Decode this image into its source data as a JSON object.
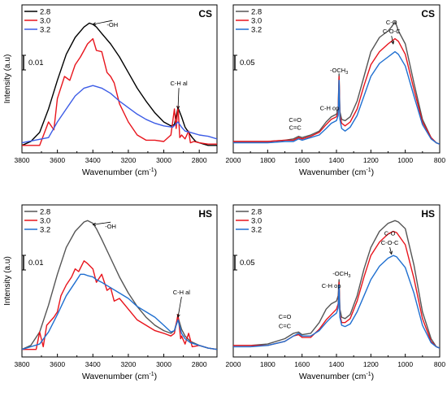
{
  "chart_data": [
    {
      "type": "line",
      "panel_label": "CS",
      "xlabel": "Wavenumber (cm",
      "xlabel_sup": "-1",
      "xlabel_close": ")",
      "ylabel": "Intensity (a.u)",
      "xlim": [
        3800,
        2700
      ],
      "ylim": [
        0,
        1
      ],
      "x_ticks": [
        3800,
        3600,
        3400,
        3200,
        3000,
        2800
      ],
      "scale_bar_label": "0.01",
      "legend": [
        "2.8",
        "3.0",
        "3.2"
      ],
      "colors": [
        "#000000",
        "#e8141c",
        "#3c5ce6"
      ],
      "annotations": [
        {
          "text": "-OH",
          "x": 3290,
          "y": 0.93,
          "arrow_to": [
            3400,
            0.95
          ]
        },
        {
          "text": "C-H al",
          "x": 2915,
          "y": 0.48,
          "arrow_to": [
            2920,
            0.3
          ]
        }
      ],
      "series": [
        {
          "name": "2.8",
          "x": [
            3800,
            3750,
            3700,
            3650,
            3600,
            3550,
            3500,
            3450,
            3420,
            3400,
            3380,
            3350,
            3300,
            3250,
            3200,
            3150,
            3100,
            3050,
            3000,
            2960,
            2940,
            2920,
            2900,
            2880,
            2860,
            2840,
            2820,
            2800,
            2750,
            2700
          ],
          "y": [
            0.02,
            0.05,
            0.12,
            0.3,
            0.52,
            0.72,
            0.85,
            0.93,
            0.96,
            0.95,
            0.93,
            0.88,
            0.8,
            0.7,
            0.58,
            0.46,
            0.36,
            0.27,
            0.2,
            0.17,
            0.18,
            0.31,
            0.24,
            0.16,
            0.12,
            0.08,
            0.05,
            0.04,
            0.02,
            0.02
          ]
        },
        {
          "name": "3.0",
          "x": [
            3800,
            3700,
            3650,
            3620,
            3600,
            3560,
            3530,
            3500,
            3470,
            3450,
            3430,
            3400,
            3380,
            3350,
            3320,
            3300,
            3280,
            3250,
            3200,
            3150,
            3100,
            3050,
            3000,
            2960,
            2940,
            2930,
            2920,
            2910,
            2900,
            2880,
            2860,
            2850,
            2830,
            2800,
            2750,
            2700
          ],
          "y": [
            0.02,
            0.02,
            0.2,
            0.14,
            0.38,
            0.55,
            0.52,
            0.64,
            0.7,
            0.75,
            0.8,
            0.84,
            0.75,
            0.74,
            0.58,
            0.55,
            0.5,
            0.34,
            0.2,
            0.1,
            0.06,
            0.06,
            0.05,
            0.1,
            0.3,
            0.15,
            0.32,
            0.08,
            0.1,
            0.07,
            0.13,
            0.04,
            0.05,
            0.04,
            0.03,
            0.03
          ]
        },
        {
          "name": "3.2",
          "x": [
            3800,
            3650,
            3600,
            3550,
            3500,
            3450,
            3400,
            3350,
            3300,
            3250,
            3200,
            3150,
            3100,
            3050,
            3000,
            2950,
            2920,
            2900,
            2880,
            2850,
            2800,
            2750,
            2700
          ],
          "y": [
            0.04,
            0.08,
            0.2,
            0.3,
            0.4,
            0.46,
            0.48,
            0.46,
            0.42,
            0.36,
            0.31,
            0.26,
            0.22,
            0.19,
            0.17,
            0.16,
            0.2,
            0.16,
            0.13,
            0.12,
            0.1,
            0.09,
            0.07
          ]
        }
      ]
    },
    {
      "type": "line",
      "panel_label": "CS",
      "xlabel": "Wavenumber (cm",
      "xlabel_sup": "-1",
      "xlabel_close": ")",
      "xlim": [
        2000,
        800
      ],
      "ylim": [
        0,
        1
      ],
      "x_ticks": [
        2000,
        1800,
        1600,
        1400,
        1200,
        1000,
        800
      ],
      "scale_bar_label": "0.05",
      "legend": [
        "2.8",
        "3.0",
        "3.2"
      ],
      "colors": [
        "#555555",
        "#e8141c",
        "#1f6fd0"
      ],
      "annotations": [
        {
          "text": "C-O",
          "x": 1080,
          "y": 0.95
        },
        {
          "text": "C-O-C",
          "x": 1080,
          "y": 0.88,
          "arrow_to": [
            1070,
            0.8
          ]
        },
        {
          "text": "-OCH",
          "sub": "3",
          "x": 1385,
          "y": 0.58
        },
        {
          "text": "C-H op",
          "x": 1440,
          "y": 0.29
        },
        {
          "text": "C=O",
          "x": 1640,
          "y": 0.2
        },
        {
          "text": "C=C",
          "x": 1640,
          "y": 0.14
        }
      ],
      "series": [
        {
          "name": "2.8",
          "x": [
            2000,
            1900,
            1800,
            1700,
            1650,
            1620,
            1600,
            1550,
            1500,
            1460,
            1430,
            1400,
            1390,
            1385,
            1380,
            1370,
            1350,
            1320,
            1280,
            1240,
            1200,
            1150,
            1100,
            1080,
            1060,
            1050,
            1040,
            1000,
            950,
            900,
            850,
            820,
            800
          ],
          "y": [
            0.05,
            0.05,
            0.05,
            0.06,
            0.07,
            0.09,
            0.08,
            0.1,
            0.13,
            0.2,
            0.24,
            0.26,
            0.3,
            0.57,
            0.28,
            0.22,
            0.21,
            0.24,
            0.36,
            0.55,
            0.74,
            0.85,
            0.9,
            0.93,
            0.97,
            0.94,
            0.9,
            0.8,
            0.5,
            0.22,
            0.08,
            0.04,
            0.03
          ]
        },
        {
          "name": "3.0",
          "x": [
            2000,
            1900,
            1800,
            1700,
            1650,
            1620,
            1600,
            1550,
            1500,
            1460,
            1430,
            1400,
            1390,
            1385,
            1380,
            1370,
            1350,
            1320,
            1280,
            1240,
            1200,
            1150,
            1100,
            1080,
            1060,
            1040,
            1000,
            950,
            900,
            850,
            820,
            800
          ],
          "y": [
            0.05,
            0.05,
            0.05,
            0.06,
            0.06,
            0.08,
            0.07,
            0.09,
            0.12,
            0.18,
            0.22,
            0.24,
            0.28,
            0.55,
            0.25,
            0.19,
            0.17,
            0.2,
            0.3,
            0.48,
            0.64,
            0.74,
            0.8,
            0.82,
            0.84,
            0.82,
            0.72,
            0.45,
            0.2,
            0.08,
            0.04,
            0.03
          ]
        },
        {
          "name": "3.2",
          "x": [
            2000,
            1900,
            1800,
            1700,
            1650,
            1620,
            1600,
            1550,
            1500,
            1460,
            1430,
            1400,
            1390,
            1385,
            1380,
            1370,
            1350,
            1320,
            1280,
            1240,
            1200,
            1150,
            1100,
            1080,
            1060,
            1040,
            1000,
            950,
            900,
            850,
            820,
            800
          ],
          "y": [
            0.04,
            0.04,
            0.04,
            0.05,
            0.05,
            0.07,
            0.06,
            0.08,
            0.1,
            0.15,
            0.19,
            0.21,
            0.25,
            0.52,
            0.22,
            0.15,
            0.13,
            0.16,
            0.25,
            0.4,
            0.55,
            0.65,
            0.7,
            0.72,
            0.74,
            0.72,
            0.63,
            0.4,
            0.18,
            0.07,
            0.04,
            0.03
          ]
        }
      ]
    },
    {
      "type": "line",
      "panel_label": "HS",
      "xlabel": "Wavenumber (cm",
      "xlabel_sup": "-1",
      "xlabel_close": ")",
      "ylabel": "Intensity (a.u)",
      "xlim": [
        3800,
        2700
      ],
      "ylim": [
        0,
        1
      ],
      "x_ticks": [
        3800,
        3600,
        3400,
        3200,
        3000,
        2800
      ],
      "scale_bar_label": "0.01",
      "legend": [
        "2.8",
        "3.0",
        "3.2"
      ],
      "colors": [
        "#555555",
        "#e8141c",
        "#1f6fd0"
      ],
      "annotations": [
        {
          "text": "-OH",
          "x": 3300,
          "y": 0.92,
          "arrow_to": [
            3400,
            0.95
          ]
        },
        {
          "text": "C-H al",
          "x": 2900,
          "y": 0.43,
          "arrow_to": [
            2920,
            0.26
          ]
        }
      ],
      "series": [
        {
          "name": "2.8",
          "x": [
            3800,
            3750,
            3700,
            3650,
            3600,
            3550,
            3500,
            3450,
            3430,
            3400,
            3380,
            3350,
            3300,
            3250,
            3200,
            3150,
            3100,
            3050,
            3000,
            2960,
            2940,
            2920,
            2900,
            2880,
            2850,
            2800,
            2750,
            2700
          ],
          "y": [
            0.02,
            0.05,
            0.15,
            0.35,
            0.58,
            0.78,
            0.9,
            0.97,
            0.98,
            0.96,
            0.92,
            0.84,
            0.7,
            0.56,
            0.44,
            0.34,
            0.26,
            0.2,
            0.16,
            0.14,
            0.16,
            0.26,
            0.17,
            0.12,
            0.08,
            0.05,
            0.03,
            0.02
          ]
        },
        {
          "name": "3.0",
          "x": [
            3800,
            3720,
            3700,
            3680,
            3660,
            3620,
            3600,
            3580,
            3550,
            3520,
            3500,
            3480,
            3450,
            3430,
            3400,
            3380,
            3350,
            3320,
            3300,
            3280,
            3250,
            3200,
            3150,
            3100,
            3050,
            3000,
            2960,
            2940,
            2920,
            2905,
            2900,
            2880,
            2860,
            2840,
            2800,
            2750,
            2700
          ],
          "y": [
            0.02,
            0.02,
            0.15,
            0.04,
            0.2,
            0.26,
            0.3,
            0.42,
            0.5,
            0.56,
            0.62,
            0.6,
            0.68,
            0.66,
            0.62,
            0.52,
            0.58,
            0.46,
            0.48,
            0.38,
            0.4,
            0.32,
            0.24,
            0.2,
            0.16,
            0.14,
            0.12,
            0.14,
            0.28,
            0.1,
            0.12,
            0.06,
            0.14,
            0.04,
            0.05,
            0.03,
            0.02
          ]
        },
        {
          "name": "3.2",
          "x": [
            3800,
            3700,
            3650,
            3600,
            3550,
            3500,
            3470,
            3450,
            3430,
            3400,
            3380,
            3350,
            3300,
            3250,
            3200,
            3150,
            3100,
            3050,
            3000,
            2960,
            2940,
            2920,
            2900,
            2880,
            2850,
            2800,
            2750,
            2700
          ],
          "y": [
            0.02,
            0.06,
            0.15,
            0.28,
            0.42,
            0.52,
            0.58,
            0.58,
            0.57,
            0.56,
            0.54,
            0.52,
            0.48,
            0.44,
            0.4,
            0.34,
            0.3,
            0.26,
            0.2,
            0.15,
            0.16,
            0.24,
            0.14,
            0.1,
            0.07,
            0.05,
            0.03,
            0.02
          ]
        }
      ]
    },
    {
      "type": "line",
      "panel_label": "HS",
      "xlabel": "Wavenumber (cm",
      "xlabel_sup": "-1",
      "xlabel_close": ")",
      "xlim": [
        2000,
        800
      ],
      "ylim": [
        0,
        1
      ],
      "x_ticks": [
        2000,
        1800,
        1600,
        1400,
        1200,
        1000,
        800
      ],
      "scale_bar_label": "0.05",
      "legend": [
        "2.8",
        "3.0",
        "3.2"
      ],
      "colors": [
        "#555555",
        "#e8141c",
        "#1f6fd0"
      ],
      "annotations": [
        {
          "text": "C-O",
          "x": 1090,
          "y": 0.87
        },
        {
          "text": "C-O-C",
          "x": 1090,
          "y": 0.8,
          "arrow_to": [
            1080,
            0.73
          ]
        },
        {
          "text": "-OCH",
          "sub": "3",
          "x": 1370,
          "y": 0.57
        },
        {
          "text": "C-H op",
          "x": 1430,
          "y": 0.48
        },
        {
          "text": "C=O",
          "x": 1700,
          "y": 0.25
        },
        {
          "text": "C=C",
          "x": 1700,
          "y": 0.18
        }
      ],
      "series": [
        {
          "name": "2.8",
          "x": [
            2000,
            1900,
            1800,
            1700,
            1650,
            1620,
            1600,
            1550,
            1500,
            1460,
            1430,
            1400,
            1390,
            1385,
            1380,
            1370,
            1350,
            1320,
            1280,
            1240,
            1200,
            1150,
            1100,
            1060,
            1040,
            1000,
            950,
            900,
            850,
            820,
            800
          ],
          "y": [
            0.05,
            0.05,
            0.06,
            0.1,
            0.14,
            0.15,
            0.13,
            0.14,
            0.22,
            0.32,
            0.36,
            0.38,
            0.42,
            0.54,
            0.32,
            0.26,
            0.25,
            0.28,
            0.42,
            0.62,
            0.78,
            0.9,
            0.96,
            0.98,
            0.97,
            0.92,
            0.65,
            0.3,
            0.1,
            0.04,
            0.03
          ]
        },
        {
          "name": "3.0",
          "x": [
            2000,
            1900,
            1800,
            1700,
            1650,
            1620,
            1600,
            1550,
            1500,
            1460,
            1430,
            1400,
            1390,
            1385,
            1380,
            1370,
            1350,
            1320,
            1280,
            1240,
            1200,
            1150,
            1100,
            1070,
            1050,
            1000,
            950,
            900,
            850,
            820,
            800
          ],
          "y": [
            0.05,
            0.05,
            0.05,
            0.08,
            0.12,
            0.13,
            0.11,
            0.11,
            0.17,
            0.24,
            0.28,
            0.32,
            0.36,
            0.52,
            0.28,
            0.22,
            0.22,
            0.25,
            0.38,
            0.56,
            0.72,
            0.82,
            0.88,
            0.9,
            0.89,
            0.8,
            0.55,
            0.25,
            0.08,
            0.04,
            0.03
          ]
        },
        {
          "name": "3.2",
          "x": [
            2000,
            1900,
            1800,
            1700,
            1650,
            1620,
            1600,
            1550,
            1500,
            1460,
            1430,
            1400,
            1390,
            1385,
            1380,
            1370,
            1350,
            1320,
            1280,
            1240,
            1200,
            1150,
            1100,
            1070,
            1050,
            1000,
            950,
            900,
            850,
            820,
            800
          ],
          "y": [
            0.04,
            0.04,
            0.05,
            0.08,
            0.12,
            0.14,
            0.12,
            0.12,
            0.16,
            0.22,
            0.26,
            0.29,
            0.33,
            0.5,
            0.26,
            0.2,
            0.19,
            0.21,
            0.3,
            0.42,
            0.54,
            0.64,
            0.7,
            0.72,
            0.71,
            0.63,
            0.44,
            0.2,
            0.07,
            0.04,
            0.03
          ]
        }
      ]
    }
  ]
}
